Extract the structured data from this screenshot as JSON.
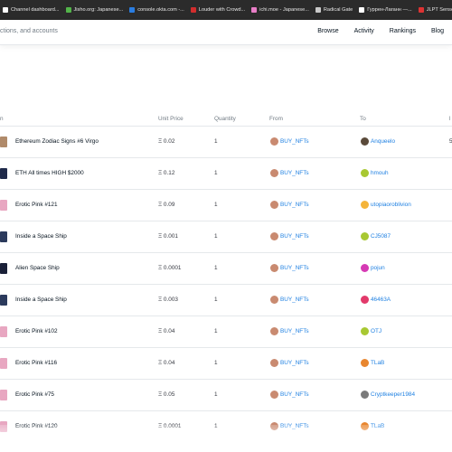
{
  "bookmarks": [
    {
      "label": "Channel dashboard...",
      "color": "#ffffff"
    },
    {
      "label": "Jisho.org: Japanese...",
      "color": "#53b54a"
    },
    {
      "label": "console.okta.com -...",
      "color": "#2a7de1"
    },
    {
      "label": "Louder with Crowd...",
      "color": "#d12d2d"
    },
    {
      "label": "ichi.moe - Japanese...",
      "color": "#e87ec7"
    },
    {
      "label": "Radical Gate",
      "color": "#c9c9c9"
    },
    {
      "label": "Гуррен-Лаганн —...",
      "color": "#ffffff"
    },
    {
      "label": "JLPT Sensei | Learn...",
      "color": "#d33"
    }
  ],
  "header": {
    "search_text": "ctions, and accounts",
    "nav": [
      "Browse",
      "Activity",
      "Rankings",
      "Blog"
    ]
  },
  "table": {
    "columns": {
      "item": "n",
      "price": "Unit Price",
      "quantity": "Quantity",
      "from": "From",
      "to": "To",
      "time": "l"
    },
    "rows": [
      {
        "item": "Ethereum Zodiac Signs #6 Virgo",
        "price": "Ξ 0.02",
        "quantity": "1",
        "from": "BUY_NFTs",
        "to": "Anqueelo",
        "thumb_color": "#b08a6a",
        "to_color": "#5a4a3a",
        "edge": "5"
      },
      {
        "item": "ETH All times HIGH $2000",
        "price": "Ξ 0.12",
        "quantity": "1",
        "from": "BUY_NFTs",
        "to": "hmouh",
        "thumb_color": "#1f2a4a",
        "to_color": "#a8c832",
        "edge": ""
      },
      {
        "item": "Erotic Pink #121",
        "price": "Ξ 0.09",
        "quantity": "1",
        "from": "BUY_NFTs",
        "to": "utopiaoroblivion",
        "thumb_color": "#e8a7c1",
        "to_color": "#f4b43a",
        "edge": ""
      },
      {
        "item": "Inside a Space Ship",
        "price": "Ξ 0.001",
        "quantity": "1",
        "from": "BUY_NFTs",
        "to": "CJ5087",
        "thumb_color": "#2b3a5c",
        "to_color": "#a8c832",
        "edge": ""
      },
      {
        "item": "Alien Space Ship",
        "price": "Ξ 0.0001",
        "quantity": "1",
        "from": "BUY_NFTs",
        "to": "pojun",
        "thumb_color": "#1a2038",
        "to_color": "#d63ab4",
        "edge": ""
      },
      {
        "item": "Inside a Space Ship",
        "price": "Ξ 0.003",
        "quantity": "1",
        "from": "BUY_NFTs",
        "to": "46463A",
        "thumb_color": "#2b3a5c",
        "to_color": "#e2396a",
        "edge": ""
      },
      {
        "item": "Erotic Pink #102",
        "price": "Ξ 0.04",
        "quantity": "1",
        "from": "BUY_NFTs",
        "to": "OTJ",
        "thumb_color": "#e8a7c1",
        "to_color": "#a8c832",
        "edge": ""
      },
      {
        "item": "Erotic Pink #116",
        "price": "Ξ 0.04",
        "quantity": "1",
        "from": "BUY_NFTs",
        "to": "TLaB",
        "thumb_color": "#e8a7c1",
        "to_color": "#e8862f",
        "edge": ""
      },
      {
        "item": "Erotic Pink #75",
        "price": "Ξ 0.05",
        "quantity": "1",
        "from": "BUY_NFTs",
        "to": "Cryptkeeper1984",
        "thumb_color": "#e8a7c1",
        "to_color": "#7a7a7a",
        "edge": ""
      },
      {
        "item": "Erotic Pink #120",
        "price": "Ξ 0.0001",
        "quantity": "1",
        "from": "BUY_NFTs",
        "to": "TLaB",
        "thumb_color": "#e8a7c1",
        "to_color": "#e8862f",
        "edge": ""
      }
    ]
  },
  "colors": {
    "link": "#2081e2",
    "from_avatar": "#c98a70"
  }
}
